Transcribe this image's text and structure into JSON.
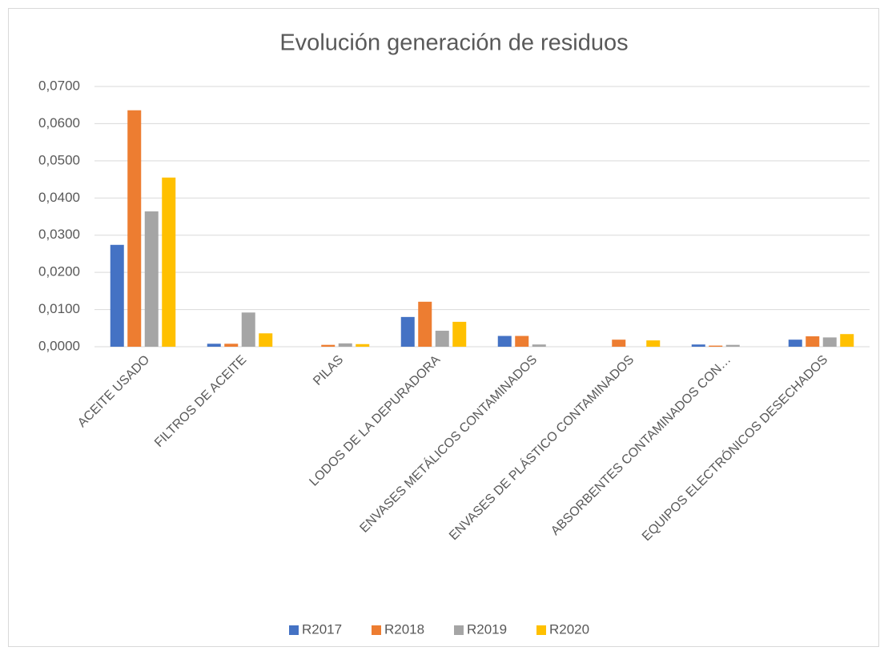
{
  "chart_data": {
    "type": "bar",
    "title": "Evolución generación de residuos",
    "categories": [
      "ACEITE USADO",
      "FILTROS DE ACEITE",
      "PILAS",
      "LODOS DE LA DEPURADORA",
      "ENVASES METÁLICOS CONTAMINADOS",
      "ENVASES DE PLÁSTICO CONTAMINADOS",
      "ABSORBENTES CONTAMINADOS CON…",
      "EQUIPOS ELECTRÓNICOS DESECHADOS"
    ],
    "series": [
      {
        "name": "R2017",
        "color": "#4472c4",
        "values": [
          0.0274,
          0.0008,
          0,
          0.008,
          0.0029,
          0,
          0.0006,
          0.0019
        ]
      },
      {
        "name": "R2018",
        "color": "#ed7d31",
        "values": [
          0.0636,
          0.0008,
          0.0005,
          0.0121,
          0.0029,
          0.0019,
          0.0003,
          0.0028
        ]
      },
      {
        "name": "R2019",
        "color": "#a5a5a5",
        "values": [
          0.0364,
          0.0092,
          0.0009,
          0.0043,
          0.0006,
          0,
          0.0005,
          0.0025
        ]
      },
      {
        "name": "R2020",
        "color": "#ffc000",
        "values": [
          0.0455,
          0.0036,
          0.0007,
          0.0067,
          0,
          0.0017,
          0,
          0.0034
        ]
      }
    ],
    "ylim": [
      0,
      0.07
    ],
    "yticks": [
      {
        "value": 0,
        "label": "0,0000"
      },
      {
        "value": 0.01,
        "label": "0,0100"
      },
      {
        "value": 0.02,
        "label": "0,0200"
      },
      {
        "value": 0.03,
        "label": "0,0300"
      },
      {
        "value": 0.04,
        "label": "0,0400"
      },
      {
        "value": 0.05,
        "label": "0,0500"
      },
      {
        "value": 0.06,
        "label": "0,0600"
      },
      {
        "value": 0.07,
        "label": "0,0700"
      }
    ],
    "grid": true,
    "legend": "bottom"
  }
}
